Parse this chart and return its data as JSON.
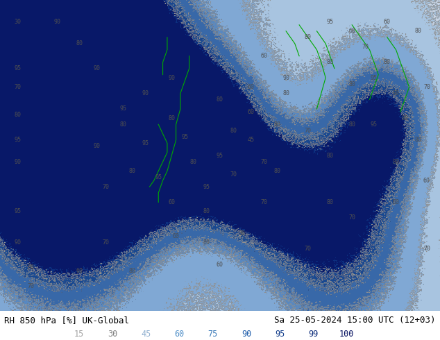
{
  "title_left": "RH 850 hPa [%] UK-Global",
  "title_right": "Sa 25-05-2024 15:00 UTC (12+03)",
  "legend_values": [
    15,
    30,
    45,
    60,
    75,
    90,
    95,
    99,
    100
  ],
  "fill_colors": [
    "#f0f0f0",
    "#e0e0e0",
    "#c8d4e4",
    "#a8c4e0",
    "#80a8d4",
    "#5888c0",
    "#3868a8",
    "#184890",
    "#0c3080",
    "#081868"
  ],
  "boundaries": [
    0,
    15,
    30,
    45,
    60,
    75,
    80,
    90,
    95,
    99,
    100
  ],
  "contour_levels": [
    15,
    30,
    45,
    60,
    75,
    80,
    90,
    95
  ],
  "legend_text_colors": [
    "#a0a0a0",
    "#808080",
    "#90b0d0",
    "#5090c8",
    "#3878b8",
    "#1858a8",
    "#0c3888",
    "#082878",
    "#041060"
  ],
  "fig_width": 6.34,
  "fig_height": 4.9,
  "dpi": 100,
  "map_bg": "#d8d8d8",
  "bottom_bg": "#ffffff",
  "coast_color": "#00aa00",
  "contour_line_color": "#909090",
  "label_color": "#505050"
}
